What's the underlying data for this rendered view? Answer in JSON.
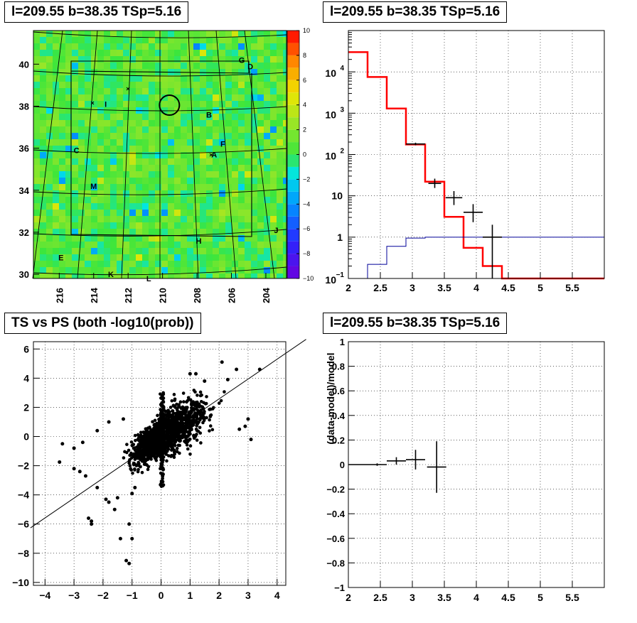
{
  "chart_data": [
    {
      "id": "skymap",
      "type": "heatmap",
      "title": "l=209.55 b=38.35 TSp=5.16",
      "xlim": [
        217.5,
        202.8
      ],
      "ylim": [
        29.8,
        41.6
      ],
      "x_ticks": [
        216,
        214,
        212,
        210,
        208,
        206,
        204
      ],
      "y_ticks": [
        30,
        32,
        34,
        36,
        38,
        40
      ],
      "colorbar": {
        "range": [
          -10,
          10
        ],
        "ticks": [
          10,
          8,
          6,
          4,
          2,
          0,
          -2,
          -4,
          -6,
          -8,
          -10
        ]
      },
      "circle": {
        "x": 209.6,
        "y": 38.05
      },
      "source_labels": [
        {
          "text": "G",
          "x": 205.4,
          "y": 40.2
        },
        {
          "text": "D",
          "x": 204.9,
          "y": 39.9
        },
        {
          "text": "I",
          "x": 213.3,
          "y": 38.1
        },
        {
          "text": "B",
          "x": 207.3,
          "y": 37.6
        },
        {
          "text": "F",
          "x": 206.5,
          "y": 36.2
        },
        {
          "text": "C",
          "x": 215.0,
          "y": 35.9
        },
        {
          "text": "A",
          "x": 207.0,
          "y": 35.7
        },
        {
          "text": "M",
          "x": 214.0,
          "y": 34.2
        },
        {
          "text": "J",
          "x": 203.4,
          "y": 32.1
        },
        {
          "text": "H",
          "x": 207.9,
          "y": 31.6
        },
        {
          "text": "E",
          "x": 215.9,
          "y": 30.8
        },
        {
          "text": "K",
          "x": 213.0,
          "y": 30.0
        },
        {
          "text": "L",
          "x": 210.8,
          "y": 29.8
        }
      ]
    },
    {
      "id": "counts",
      "type": "line",
      "title": "l=209.55 b=38.35 TSp=5.16",
      "yscale": "log",
      "xlim": [
        2,
        6
      ],
      "ylim": [
        0.1,
        100000
      ],
      "x_ticks": [
        2,
        2.5,
        3,
        3.5,
        4,
        4.5,
        5,
        5.5
      ],
      "y_ticks": [
        {
          "v": 0.1,
          "label": "10",
          "exp": "−1"
        },
        {
          "v": 1,
          "label": "1",
          "exp": ""
        },
        {
          "v": 10,
          "label": "10",
          "exp": ""
        },
        {
          "v": 100,
          "label": "10",
          "exp": "2"
        },
        {
          "v": 1000,
          "label": "10",
          "exp": "3"
        },
        {
          "v": 10000,
          "label": "10",
          "exp": "4"
        }
      ],
      "bin_edges": [
        2,
        2.3,
        2.6,
        2.9,
        3.2,
        3.5,
        3.8,
        4.1,
        4.4,
        6
      ],
      "series": [
        {
          "color": "#ff0000",
          "values": [
            30000,
            7500,
            1300,
            175,
            22,
            3.1,
            0.55,
            0.2,
            0.1
          ]
        },
        {
          "color": "#000099",
          "values": [
            0.05,
            0.22,
            0.6,
            0.95,
            1.0,
            1.0,
            1.0,
            1.0,
            1.0
          ]
        }
      ],
      "points": [
        {
          "x": 3.05,
          "y": 180,
          "xerr": 0.15,
          "ylo": 167,
          "yhi": 193
        },
        {
          "x": 3.35,
          "y": 20,
          "xerr": 0.1,
          "ylo": 15.5,
          "yhi": 26
        },
        {
          "x": 3.65,
          "y": 9,
          "xerr": 0.13,
          "ylo": 6,
          "yhi": 13
        },
        {
          "x": 3.95,
          "y": 4,
          "xerr": 0.15,
          "ylo": 2.3,
          "yhi": 6.3
        },
        {
          "x": 4.25,
          "y": 1,
          "xerr": 0.15,
          "ylo": 0.1,
          "yhi": 2.0
        }
      ]
    },
    {
      "id": "ts-vs-ps",
      "type": "scatter",
      "title": "TS vs PS (both -log10(prob))",
      "xlim": [
        -4.4,
        4.3
      ],
      "ylim": [
        -10.2,
        6.5
      ],
      "x_ticks": [
        -4,
        -3,
        -2,
        -1,
        0,
        1,
        2,
        3,
        4
      ],
      "y_ticks": [
        -10,
        -8,
        -6,
        -4,
        -2,
        0,
        2,
        4,
        6
      ],
      "fit_line": {
        "slope": 1.36,
        "intercept": -0.14
      },
      "points": [
        [
          3.4,
          4.6
        ],
        [
          -3.4,
          -0.5
        ],
        [
          -3.5,
          -1.75
        ],
        [
          -2.4,
          -5.8
        ],
        [
          -2.5,
          -5.6
        ],
        [
          -2.4,
          -6.0
        ],
        [
          -1.4,
          -7.0
        ],
        [
          -1.2,
          -8.5
        ],
        [
          -1.1,
          -8.7
        ],
        [
          -1.0,
          -7.0
        ],
        [
          -1.1,
          -6.0
        ],
        [
          -1.6,
          -5.0
        ],
        [
          -1.8,
          -4.5
        ],
        [
          -1.9,
          -4.3
        ],
        [
          -1.0,
          -3.9
        ],
        [
          -0.9,
          -3.5
        ],
        [
          -2.2,
          -3.5
        ],
        [
          -1.5,
          -4.2
        ],
        [
          -2.6,
          -2.7
        ],
        [
          -2.8,
          -2.4
        ],
        [
          -3.0,
          -2.2
        ],
        [
          2.1,
          5.1
        ],
        [
          2.6,
          4.6
        ],
        [
          1.0,
          4.3
        ],
        [
          1.2,
          4.3
        ],
        [
          3.1,
          -0.2
        ],
        [
          2.7,
          0.5
        ],
        [
          2.9,
          0.7
        ],
        [
          1.5,
          3.8
        ],
        [
          -1.8,
          1.0
        ],
        [
          -2.2,
          0.4
        ],
        [
          -2.7,
          -0.4
        ],
        [
          -1.3,
          1.2
        ],
        [
          2.3,
          3.9
        ],
        [
          3.0,
          1.2
        ],
        [
          -3.0,
          -0.8
        ]
      ]
    },
    {
      "id": "residuals",
      "type": "line",
      "title": "l=209.55 b=38.35 TSp=5.16",
      "ylabel": "(data-model)/model",
      "xlim": [
        2,
        6
      ],
      "ylim": [
        -1,
        1
      ],
      "x_ticks": [
        2,
        2.5,
        3,
        3.5,
        4,
        4.5,
        5,
        5.5
      ],
      "y_ticks": [
        1,
        0.8,
        0.6,
        0.4,
        0.2,
        0,
        -0.2,
        -0.4,
        -0.6,
        -0.8,
        -1
      ],
      "points": [
        {
          "x": 2.15,
          "y": 0.0,
          "xerr": 0.15,
          "yerr": 0.004
        },
        {
          "x": 2.45,
          "y": 0.0,
          "xerr": 0.15,
          "yerr": 0.01
        },
        {
          "x": 2.75,
          "y": 0.03,
          "xerr": 0.15,
          "yerr": 0.03
        },
        {
          "x": 3.05,
          "y": 0.04,
          "xerr": 0.15,
          "yerr": 0.08
        },
        {
          "x": 3.38,
          "y": -0.02,
          "xerr": 0.15,
          "yerr": 0.21
        }
      ]
    }
  ]
}
